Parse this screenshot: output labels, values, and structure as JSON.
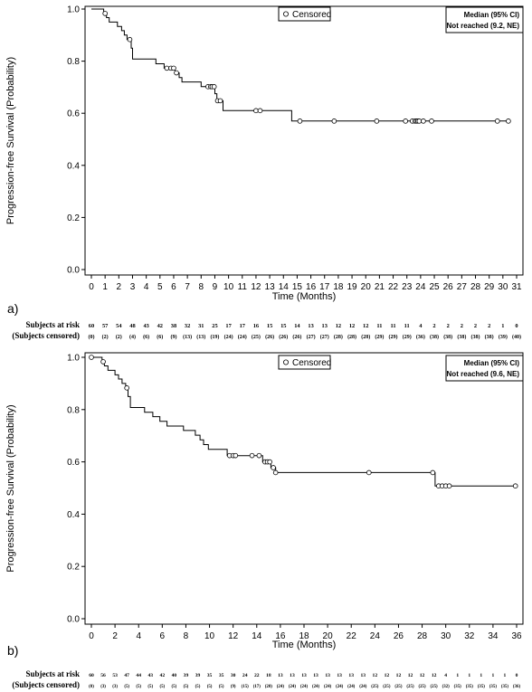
{
  "chart_data": [
    {
      "type": "line",
      "panel_label": "a)",
      "xlabel": "Time (Months)",
      "ylabel": "Progression-free Survival (Probability)",
      "xlim": [
        0,
        31
      ],
      "ylim": [
        0.0,
        1.0
      ],
      "xticks": [
        0,
        1,
        2,
        3,
        4,
        5,
        6,
        7,
        8,
        9,
        10,
        11,
        12,
        13,
        14,
        15,
        16,
        17,
        18,
        19,
        20,
        21,
        22,
        23,
        24,
        25,
        26,
        27,
        28,
        29,
        30,
        31
      ],
      "yticks": [
        "0.0",
        "0.2",
        "0.4",
        "0.6",
        "0.8",
        "1.0"
      ],
      "legend_label": "Censored",
      "median_header": "Median (95% CI)",
      "median_value": "Not reached (9.2, NE)",
      "curve": [
        [
          0,
          1.0
        ],
        [
          0.9,
          1.0
        ],
        [
          0.9,
          0.983
        ],
        [
          1.1,
          0.983
        ],
        [
          1.1,
          0.967
        ],
        [
          1.3,
          0.967
        ],
        [
          1.3,
          0.95
        ],
        [
          1.9,
          0.95
        ],
        [
          1.9,
          0.933
        ],
        [
          2.2,
          0.933
        ],
        [
          2.2,
          0.917
        ],
        [
          2.4,
          0.917
        ],
        [
          2.4,
          0.9
        ],
        [
          2.6,
          0.9
        ],
        [
          2.6,
          0.883
        ],
        [
          2.9,
          0.883
        ],
        [
          2.9,
          0.85
        ],
        [
          3.0,
          0.85
        ],
        [
          3.0,
          0.808
        ],
        [
          4.7,
          0.808
        ],
        [
          4.7,
          0.79
        ],
        [
          5.3,
          0.79
        ],
        [
          5.3,
          0.773
        ],
        [
          6.1,
          0.773
        ],
        [
          6.1,
          0.755
        ],
        [
          6.4,
          0.755
        ],
        [
          6.4,
          0.737
        ],
        [
          6.6,
          0.737
        ],
        [
          6.6,
          0.72
        ],
        [
          8.0,
          0.72
        ],
        [
          8.0,
          0.702
        ],
        [
          9.0,
          0.702
        ],
        [
          9.0,
          0.675
        ],
        [
          9.15,
          0.675
        ],
        [
          9.15,
          0.648
        ],
        [
          9.6,
          0.648
        ],
        [
          9.6,
          0.61
        ],
        [
          14.6,
          0.61
        ],
        [
          14.6,
          0.57
        ],
        [
          30.5,
          0.57
        ]
      ],
      "censored": [
        [
          1.0,
          0.983
        ],
        [
          2.8,
          0.883
        ],
        [
          5.5,
          0.773
        ],
        [
          5.8,
          0.773
        ],
        [
          6.0,
          0.773
        ],
        [
          6.2,
          0.755
        ],
        [
          8.5,
          0.702
        ],
        [
          8.7,
          0.702
        ],
        [
          8.8,
          0.702
        ],
        [
          8.95,
          0.702
        ],
        [
          9.2,
          0.648
        ],
        [
          9.4,
          0.648
        ],
        [
          12.0,
          0.61
        ],
        [
          12.3,
          0.61
        ],
        [
          15.2,
          0.57
        ],
        [
          17.7,
          0.57
        ],
        [
          20.8,
          0.57
        ],
        [
          22.9,
          0.57
        ],
        [
          23.4,
          0.57
        ],
        [
          23.6,
          0.57
        ],
        [
          23.7,
          0.57
        ],
        [
          23.8,
          0.57
        ],
        [
          23.9,
          0.57
        ],
        [
          24.2,
          0.57
        ],
        [
          24.8,
          0.57
        ],
        [
          29.6,
          0.57
        ],
        [
          30.4,
          0.57
        ]
      ],
      "at_risk_label": "Subjects at risk",
      "censored_label": "(Subjects censored)",
      "at_risk": [
        "60",
        "57",
        "54",
        "48",
        "43",
        "42",
        "38",
        "32",
        "31",
        "25",
        "17",
        "17",
        "16",
        "15",
        "15",
        "14",
        "13",
        "13",
        "12",
        "12",
        "12",
        "11",
        "11",
        "11",
        "4",
        "2",
        "2",
        "2",
        "2",
        "2",
        "1",
        "0"
      ],
      "censored_counts": [
        "(0)",
        "(2)",
        "(2)",
        "(4)",
        "(6)",
        "(6)",
        "(9)",
        "(13)",
        "(13)",
        "(19)",
        "(24)",
        "(24)",
        "(25)",
        "(26)",
        "(26)",
        "(26)",
        "(27)",
        "(27)",
        "(28)",
        "(28)",
        "(28)",
        "(29)",
        "(29)",
        "(29)",
        "(36)",
        "(38)",
        "(38)",
        "(38)",
        "(38)",
        "(38)",
        "(39)",
        "(40)"
      ]
    },
    {
      "type": "line",
      "panel_label": "b)",
      "xlabel": "Time (Months)",
      "ylabel": "Progression-free Survival (Probability)",
      "xlim": [
        0,
        36
      ],
      "ylim": [
        0.0,
        1.0
      ],
      "xticks": [
        0,
        2,
        4,
        6,
        8,
        10,
        12,
        14,
        16,
        18,
        20,
        22,
        24,
        26,
        28,
        30,
        32,
        34,
        36
      ],
      "yticks": [
        "0.0",
        "0.2",
        "0.4",
        "0.6",
        "0.8",
        "1.0"
      ],
      "legend_label": "Censored",
      "median_header": "Median (95% CI)",
      "median_value": "Not reached (9.6, NE)",
      "curve": [
        [
          0,
          1.0
        ],
        [
          0.9,
          1.0
        ],
        [
          0.9,
          0.983
        ],
        [
          1.1,
          0.983
        ],
        [
          1.1,
          0.967
        ],
        [
          1.4,
          0.967
        ],
        [
          1.4,
          0.95
        ],
        [
          2.0,
          0.95
        ],
        [
          2.0,
          0.933
        ],
        [
          2.3,
          0.933
        ],
        [
          2.3,
          0.917
        ],
        [
          2.6,
          0.917
        ],
        [
          2.6,
          0.9
        ],
        [
          2.9,
          0.9
        ],
        [
          2.9,
          0.883
        ],
        [
          3.1,
          0.883
        ],
        [
          3.1,
          0.85
        ],
        [
          3.3,
          0.85
        ],
        [
          3.3,
          0.808
        ],
        [
          4.5,
          0.808
        ],
        [
          4.5,
          0.79
        ],
        [
          5.2,
          0.79
        ],
        [
          5.2,
          0.773
        ],
        [
          5.8,
          0.773
        ],
        [
          5.8,
          0.755
        ],
        [
          6.4,
          0.755
        ],
        [
          6.4,
          0.737
        ],
        [
          7.8,
          0.737
        ],
        [
          7.8,
          0.72
        ],
        [
          8.8,
          0.72
        ],
        [
          8.8,
          0.702
        ],
        [
          9.2,
          0.702
        ],
        [
          9.2,
          0.684
        ],
        [
          9.5,
          0.684
        ],
        [
          9.5,
          0.666
        ],
        [
          9.9,
          0.666
        ],
        [
          9.9,
          0.648
        ],
        [
          11.5,
          0.648
        ],
        [
          11.5,
          0.624
        ],
        [
          14.5,
          0.624
        ],
        [
          14.5,
          0.6
        ],
        [
          15.2,
          0.6
        ],
        [
          15.2,
          0.578
        ],
        [
          15.6,
          0.578
        ],
        [
          15.6,
          0.559
        ],
        [
          29.1,
          0.559
        ],
        [
          29.1,
          0.508
        ],
        [
          36.0,
          0.508
        ]
      ],
      "censored": [
        [
          0,
          1.0
        ],
        [
          1.0,
          0.983
        ],
        [
          3.0,
          0.883
        ],
        [
          11.7,
          0.624
        ],
        [
          12.0,
          0.624
        ],
        [
          12.2,
          0.624
        ],
        [
          13.6,
          0.624
        ],
        [
          14.2,
          0.624
        ],
        [
          14.7,
          0.6
        ],
        [
          14.9,
          0.6
        ],
        [
          15.1,
          0.6
        ],
        [
          15.4,
          0.578
        ],
        [
          15.6,
          0.559
        ],
        [
          23.5,
          0.559
        ],
        [
          28.9,
          0.559
        ],
        [
          29.4,
          0.508
        ],
        [
          29.7,
          0.508
        ],
        [
          30.0,
          0.508
        ],
        [
          30.3,
          0.508
        ],
        [
          35.9,
          0.508
        ]
      ],
      "at_risk_label": "Subjects at risk",
      "censored_label": "(Subjects censored)",
      "at_risk": [
        "60",
        "56",
        "53",
        "47",
        "44",
        "43",
        "42",
        "40",
        "39",
        "39",
        "35",
        "35",
        "30",
        "24",
        "22",
        "18",
        "13",
        "13",
        "13",
        "13",
        "13",
        "13",
        "13",
        "13",
        "12",
        "12",
        "12",
        "12",
        "12",
        "12",
        "4",
        "1",
        "1",
        "1",
        "1",
        "1",
        "0"
      ],
      "censored_counts": [
        "(0)",
        "(3)",
        "(3)",
        "(5)",
        "(5)",
        "(5)",
        "(5)",
        "(5)",
        "(5)",
        "(5)",
        "(5)",
        "(5)",
        "(9)",
        "(15)",
        "(17)",
        "(20)",
        "(24)",
        "(24)",
        "(24)",
        "(24)",
        "(24)",
        "(24)",
        "(24)",
        "(24)",
        "(25)",
        "(25)",
        "(25)",
        "(25)",
        "(25)",
        "(25)",
        "(32)",
        "(35)",
        "(35)",
        "(35)",
        "(35)",
        "(35)",
        "(36)"
      ]
    }
  ]
}
